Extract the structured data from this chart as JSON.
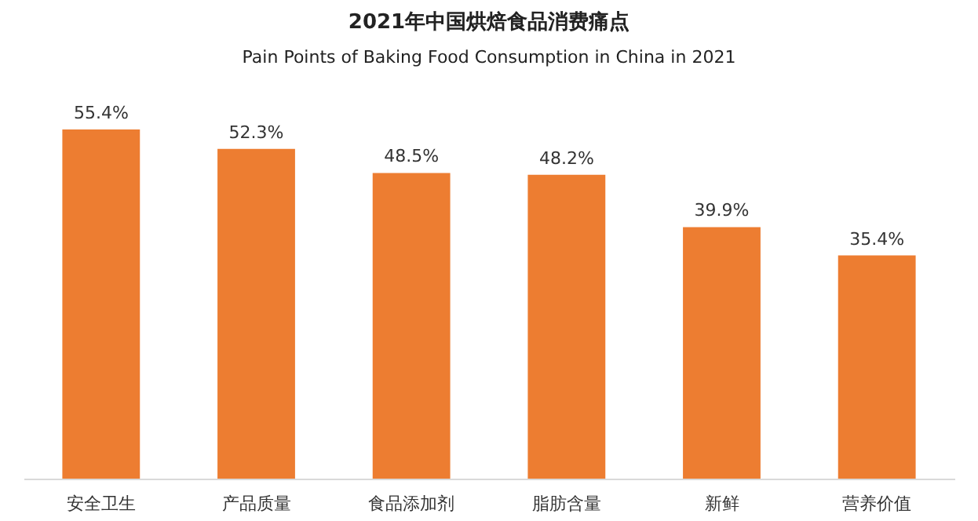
{
  "chart_data": {
    "type": "bar",
    "title": "2021年中国烘焙食品消费痛点",
    "subtitle": "Pain Points of Baking Food Consumption in China in 2021",
    "categories": [
      "安全卫生",
      "产品质量",
      "食品添加剂",
      "脂肪含量",
      "新鲜",
      "营养价值"
    ],
    "values": [
      55.4,
      52.3,
      48.5,
      48.2,
      39.9,
      35.4
    ],
    "value_labels": [
      "55.4%",
      "52.3%",
      "48.5%",
      "48.2%",
      "39.9%",
      "35.4%"
    ],
    "color": "#ed7d31",
    "grid": false
  }
}
